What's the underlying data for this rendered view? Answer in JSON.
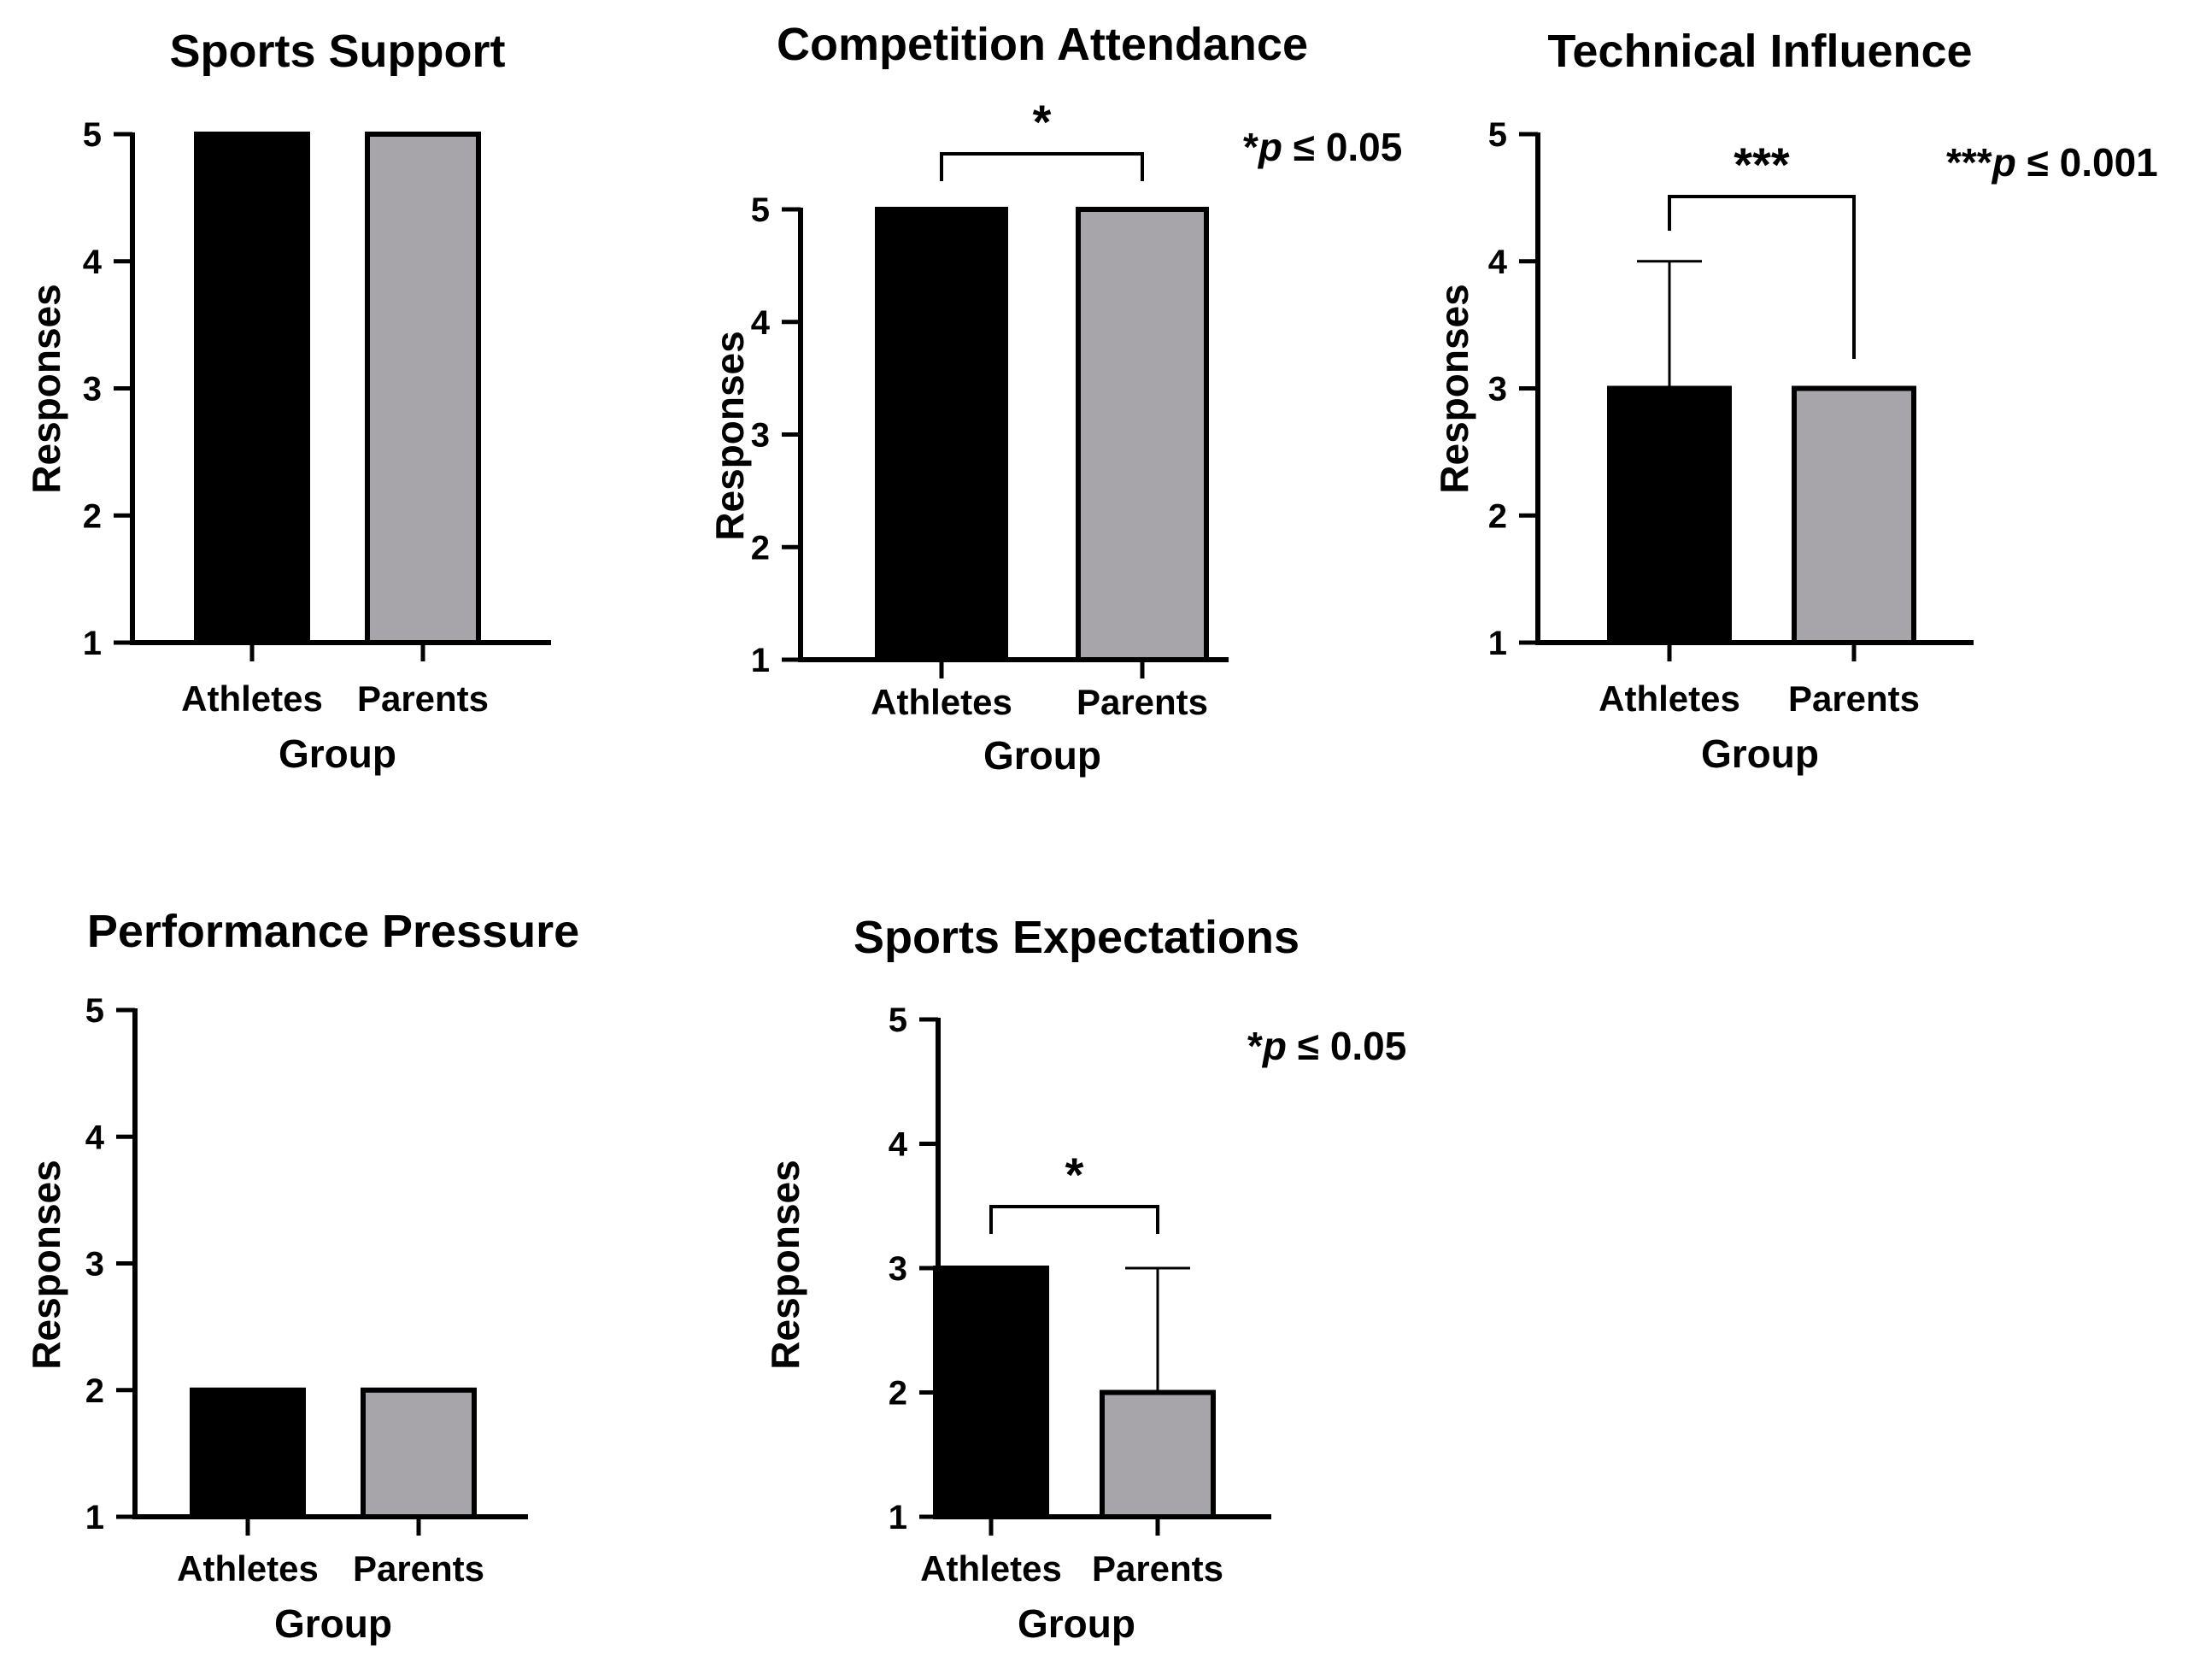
{
  "chart_data": [
    {
      "type": "bar",
      "title": "Sports Support",
      "categories": [
        "Athletes",
        "Parents"
      ],
      "values": [
        5,
        5
      ],
      "error_upper": [
        null,
        null
      ],
      "xlabel": "Group",
      "ylabel": "Responses",
      "ylim": [
        1,
        5
      ],
      "yticks": [
        "1",
        "2",
        "3",
        "4",
        "5"
      ],
      "significance": null,
      "p_note": null
    },
    {
      "type": "bar",
      "title": "Competition Attendance",
      "categories": [
        "Athletes",
        "Parents"
      ],
      "values": [
        5,
        5
      ],
      "error_upper": [
        null,
        null
      ],
      "xlabel": "Group",
      "ylabel": "Responses",
      "ylim": [
        1,
        5
      ],
      "yticks": [
        "1",
        "2",
        "3",
        "4",
        "5"
      ],
      "significance": "*",
      "p_note": {
        "stars": "*",
        "p": "p",
        "rest": " ≤ 0.05"
      }
    },
    {
      "type": "bar",
      "title": "Technical Influence",
      "categories": [
        "Athletes",
        "Parents"
      ],
      "values": [
        3,
        3
      ],
      "error_upper": [
        4,
        null
      ],
      "xlabel": "Group",
      "ylabel": "Responses",
      "ylim": [
        1,
        5
      ],
      "yticks": [
        "1",
        "2",
        "3",
        "4",
        "5"
      ],
      "significance": "***",
      "p_note": {
        "stars": "***",
        "p": "p",
        "rest": " ≤ 0.001"
      }
    },
    {
      "type": "bar",
      "title": "Performance Pressure",
      "categories": [
        "Athletes",
        "Parents"
      ],
      "values": [
        2,
        2
      ],
      "error_upper": [
        null,
        null
      ],
      "xlabel": "Group",
      "ylabel": "Responses",
      "ylim": [
        1,
        5
      ],
      "yticks": [
        "1",
        "2",
        "3",
        "4",
        "5"
      ],
      "significance": null,
      "p_note": null
    },
    {
      "type": "bar",
      "title": "Sports Expectations",
      "categories": [
        "Athletes",
        "Parents"
      ],
      "values": [
        3,
        2
      ],
      "error_upper": [
        null,
        3
      ],
      "xlabel": "Group",
      "ylabel": "Responses",
      "ylim": [
        1,
        5
      ],
      "yticks": [
        "1",
        "2",
        "3",
        "4",
        "5"
      ],
      "significance": "*",
      "p_note": {
        "stars": "*",
        "p": "p",
        "rest": " ≤ 0.05"
      }
    }
  ],
  "colors": {
    "athletes": "#000000",
    "parents": "#a7a5aa",
    "axis": "#000000"
  }
}
